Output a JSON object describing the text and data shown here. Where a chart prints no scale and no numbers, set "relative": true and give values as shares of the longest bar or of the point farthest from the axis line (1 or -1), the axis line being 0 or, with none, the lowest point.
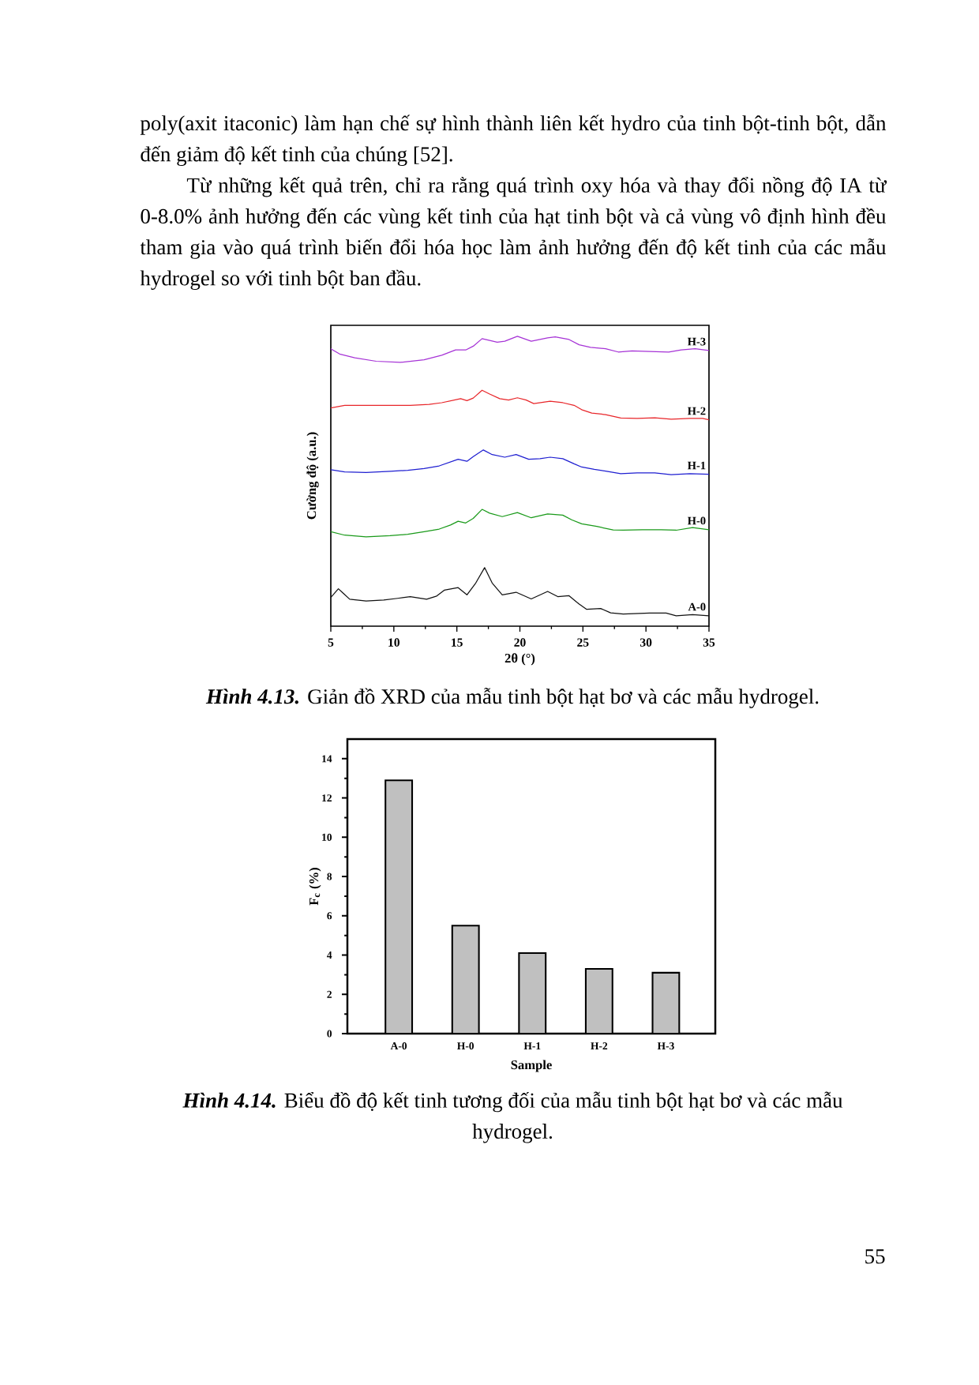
{
  "chart_data": [
    {
      "type": "line",
      "title": "**Hình 4.13.** Giản đồ XRD của mẫu tinh bột hạt bơ và các mẫu hydrogel.",
      "xlabel": "2θ (°)",
      "ylabel": "Cường độ (a.u.)",
      "relative": true,
      "xlim": [
        5,
        35
      ],
      "xticks": [
        5,
        10,
        15,
        20,
        25,
        30,
        35
      ],
      "tick_labels": "x",
      "marker": "none",
      "line_style": "solid",
      "series": [
        {
          "name": "A-0",
          "color": "#111111",
          "x": [
            5.0,
            5.6,
            6.0,
            6.5,
            7.8,
            9.2,
            10.3,
            11.3,
            12.6,
            13.4,
            14.0,
            15.1,
            15.8,
            16.5,
            17.2,
            17.8,
            18.6,
            19.7,
            20.9,
            22.2,
            23.0,
            23.9,
            24.7,
            25.3,
            26.4,
            27.2,
            28.2,
            30.3,
            31.6,
            32.4,
            33.7,
            35.0
          ],
          "values": [
            0.099,
            0.129,
            0.113,
            0.093,
            0.087,
            0.09,
            0.096,
            0.102,
            0.093,
            0.104,
            0.124,
            0.133,
            0.108,
            0.149,
            0.202,
            0.149,
            0.108,
            0.117,
            0.094,
            0.12,
            0.102,
            0.105,
            0.076,
            0.058,
            0.061,
            0.046,
            0.042,
            0.045,
            0.045,
            0.036,
            0.04,
            0.036
          ]
        },
        {
          "name": "H-0",
          "color": "#1a9a1a",
          "x": [
            5.0,
            6.1,
            7.8,
            9.7,
            11.1,
            12.4,
            13.6,
            14.5,
            15.1,
            15.7,
            16.3,
            17.0,
            17.6,
            18.6,
            19.8,
            20.9,
            22.2,
            23.4,
            24.1,
            24.9,
            26.1,
            27.4,
            28.2,
            29.7,
            31.2,
            32.4,
            33.7,
            35.0
          ],
          "values": [
            0.326,
            0.314,
            0.308,
            0.312,
            0.317,
            0.326,
            0.335,
            0.349,
            0.362,
            0.356,
            0.372,
            0.403,
            0.39,
            0.378,
            0.392,
            0.374,
            0.387,
            0.383,
            0.367,
            0.353,
            0.344,
            0.332,
            0.331,
            0.333,
            0.333,
            0.331,
            0.34,
            0.333
          ]
        },
        {
          "name": "H-1",
          "color": "#1f1fd1",
          "x": [
            5.0,
            6.1,
            7.8,
            9.7,
            11.1,
            12.4,
            13.6,
            15.1,
            15.8,
            16.3,
            17.1,
            17.8,
            18.8,
            19.7,
            20.7,
            21.6,
            22.4,
            23.4,
            24.3,
            24.9,
            25.9,
            26.8,
            28.0,
            29.3,
            30.7,
            32.0,
            33.5,
            35.0
          ],
          "values": [
            0.54,
            0.532,
            0.53,
            0.534,
            0.538,
            0.544,
            0.553,
            0.576,
            0.569,
            0.585,
            0.608,
            0.592,
            0.583,
            0.592,
            0.576,
            0.578,
            0.583,
            0.578,
            0.56,
            0.549,
            0.541,
            0.535,
            0.526,
            0.529,
            0.529,
            0.523,
            0.526,
            0.524
          ]
        },
        {
          "name": "H-2",
          "color": "#e8262a",
          "x": [
            5.0,
            6.1,
            7.8,
            9.7,
            11.3,
            12.8,
            13.8,
            15.3,
            15.8,
            16.3,
            17.0,
            17.6,
            18.4,
            19.1,
            19.8,
            20.5,
            21.1,
            22.4,
            23.4,
            24.3,
            24.9,
            25.7,
            26.8,
            28.0,
            29.3,
            30.7,
            32.0,
            33.5,
            34.5,
            35.0
          ],
          "values": [
            0.753,
            0.762,
            0.762,
            0.762,
            0.762,
            0.765,
            0.771,
            0.785,
            0.778,
            0.787,
            0.814,
            0.801,
            0.785,
            0.78,
            0.788,
            0.78,
            0.768,
            0.776,
            0.771,
            0.762,
            0.747,
            0.735,
            0.73,
            0.718,
            0.717,
            0.719,
            0.714,
            0.717,
            0.717,
            0.712
          ]
        },
        {
          "name": "H-3",
          "color": "#a633d6",
          "x": [
            5.0,
            5.7,
            6.9,
            8.6,
            10.5,
            12.4,
            13.8,
            14.9,
            15.7,
            16.3,
            17.0,
            17.6,
            18.2,
            18.8,
            19.8,
            20.9,
            22.2,
            22.8,
            23.9,
            24.7,
            25.6,
            26.8,
            27.8,
            28.9,
            30.3,
            31.8,
            32.8,
            33.9,
            35.0
          ],
          "values": [
            0.957,
            0.939,
            0.926,
            0.914,
            0.91,
            0.919,
            0.935,
            0.953,
            0.953,
            0.966,
            0.992,
            0.986,
            0.98,
            0.983,
            1.0,
            0.983,
            0.995,
            0.998,
            0.989,
            0.971,
            0.962,
            0.957,
            0.946,
            0.95,
            0.948,
            0.946,
            0.953,
            0.957,
            0.951
          ]
        }
      ],
      "annotations": [
        "poly(axit itaconic) làm hạn chế sự hình thành liên kết hydro của tinh bột-tinh bột, dẫn đến giảm độ kết tinh của chúng [52].",
        "Từ những kết quả trên, chỉ ra rằng quá trình oxy hóa và thay đổi nồng độ IA từ 0-8.0% ảnh hưởng đến các vùng kết tinh của hạt tinh bột và cả vùng vô định hình đều tham gia vào quá trình biến đổi hóa học làm ảnh hưởng đến độ kết tinh của các mẫu hydrogel so với tinh bột ban đầu."
      ]
    },
    {
      "type": "bar",
      "title": "**Hình 4.14.** Biểu đồ độ kết tinh tương đối của mẫu tinh bột hạt bơ và các mẫu hydrogel.",
      "xlabel": "Sample",
      "ylabel": "F$_{c}$ (%)",
      "categories": [
        "A-0",
        "H-0",
        "H-1",
        "H-2",
        "H-3"
      ],
      "values": [
        12.9,
        5.5,
        4.1,
        3.3,
        3.1
      ],
      "color": "#c0c0c0",
      "ylim": [
        0,
        15
      ],
      "yticks": [
        0,
        2,
        4,
        6,
        8,
        10,
        12,
        14
      ],
      "annotations": [
        "55"
      ]
    }
  ]
}
